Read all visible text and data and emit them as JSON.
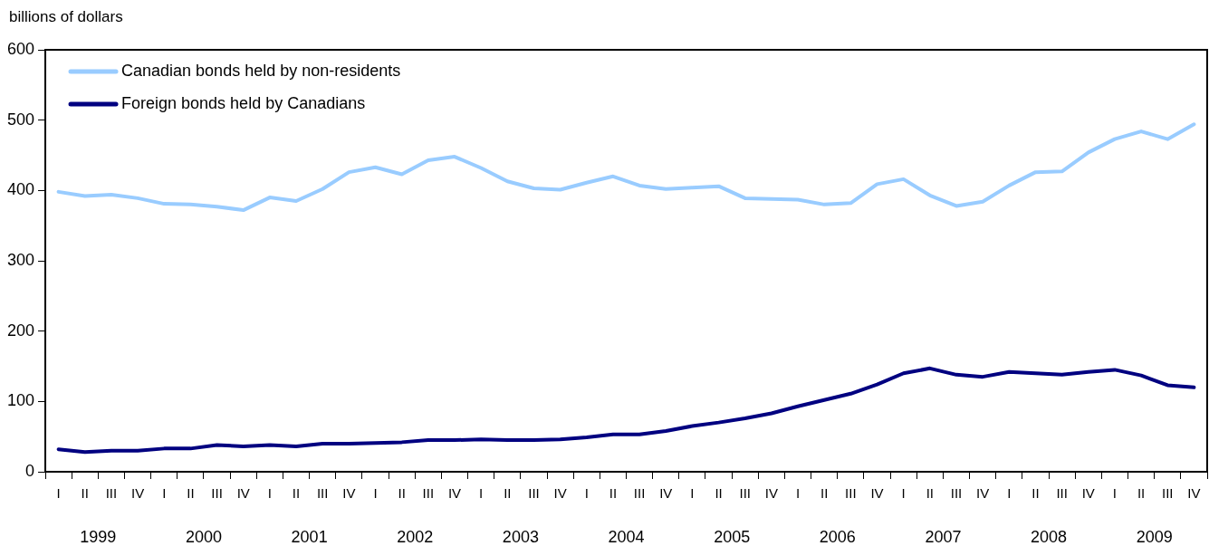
{
  "chart_data": {
    "type": "line",
    "ylabel": "billions of dollars",
    "categories": [
      "I",
      "II",
      "III",
      "IV",
      "I",
      "II",
      "III",
      "IV",
      "I",
      "II",
      "III",
      "IV",
      "I",
      "II",
      "III",
      "IV",
      "I",
      "II",
      "III",
      "IV",
      "I",
      "II",
      "III",
      "IV",
      "I",
      "II",
      "III",
      "IV",
      "I",
      "II",
      "III",
      "IV",
      "I",
      "II",
      "III",
      "IV",
      "I",
      "II",
      "III",
      "IV",
      "I",
      "II",
      "III",
      "IV"
    ],
    "annotations": [
      "1999",
      "2000",
      "2001",
      "2002",
      "2003",
      "2004",
      "2005",
      "2006",
      "2007",
      "2008",
      "2009"
    ],
    "series": [
      {
        "name": "Canadian bonds held by non-residents",
        "color": "#99ccff",
        "values": [
          398,
          392,
          394,
          389,
          381,
          380,
          377,
          372,
          390,
          385,
          402,
          426,
          433,
          423,
          443,
          448,
          432,
          413,
          403,
          401,
          411,
          420,
          407,
          402,
          404,
          406,
          389,
          388,
          387,
          380,
          382,
          409,
          416,
          393,
          378,
          384,
          407,
          426,
          427,
          454,
          473,
          484,
          473,
          494
        ]
      },
      {
        "name": "Foreign bonds held by Canadians",
        "color": "#000080",
        "values": [
          32,
          28,
          30,
          30,
          33,
          33,
          38,
          36,
          38,
          36,
          40,
          40,
          41,
          42,
          45,
          45,
          46,
          45,
          45,
          46,
          49,
          53,
          53,
          58,
          65,
          70,
          76,
          83,
          93,
          102,
          111,
          124,
          140,
          147,
          138,
          135,
          142,
          140,
          138,
          142,
          145,
          137,
          123,
          120
        ]
      }
    ],
    "ylim": [
      0,
      600
    ],
    "yticks": [
      0,
      100,
      200,
      300,
      400,
      500,
      600
    ],
    "grid": false,
    "legend": "top left",
    "marker": "none",
    "line_style": "solid"
  }
}
